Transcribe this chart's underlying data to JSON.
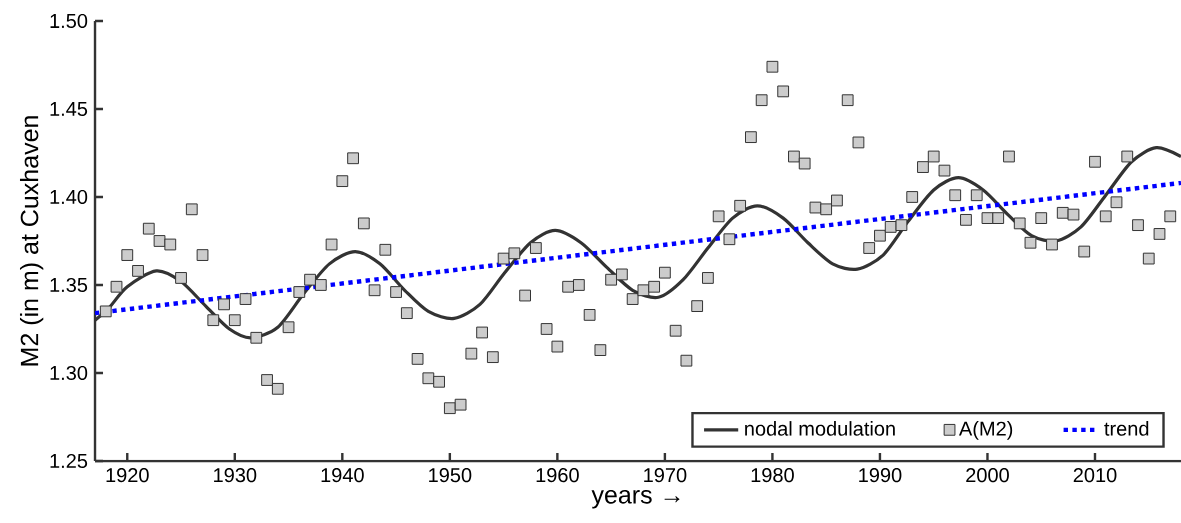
{
  "chart_data": {
    "type": "line",
    "xlabel": "years  →",
    "ylabel": "M2 (in m) at Cuxhaven",
    "xlim": [
      1917,
      2018
    ],
    "ylim": [
      1.25,
      1.5
    ],
    "xticks": [
      1920,
      1930,
      1940,
      1950,
      1960,
      1970,
      1980,
      1990,
      2000,
      2010
    ],
    "yticks": [
      {
        "value": 1.25,
        "label": "1.25"
      },
      {
        "value": 1.3,
        "label": "1.30"
      },
      {
        "value": 1.35,
        "label": "1.35"
      },
      {
        "value": 1.4,
        "label": "1.40"
      },
      {
        "value": 1.45,
        "label": "1.45"
      },
      {
        "value": 1.5,
        "label": "1.50"
      }
    ],
    "grid": false,
    "legend": "bottom right",
    "series": [
      {
        "name": "nodal modulation",
        "color": "#333333",
        "line_style": "solid",
        "marker": "none",
        "x": [
          1917,
          1918.3,
          1920,
          1922.7,
          1925,
          1927.3,
          1929.5,
          1931.5,
          1934,
          1936.4,
          1938.8,
          1941.2,
          1943.5,
          1945.8,
          1948,
          1950.4,
          1952.8,
          1955.1,
          1957.5,
          1959.8,
          1962.2,
          1964.6,
          1967,
          1969.4,
          1971.7,
          1974,
          1976.3,
          1978.6,
          1981,
          1983.3,
          1985.6,
          1987.9,
          1990.3,
          1992.6,
          1995,
          1997.3,
          1999.6,
          2001.9,
          2004.1,
          2006.4,
          2008.7,
          2011,
          2013.4,
          2015.7,
          2018
        ],
        "values": [
          1.33,
          1.337,
          1.349,
          1.358,
          1.352,
          1.338,
          1.325,
          1.32,
          1.326,
          1.345,
          1.362,
          1.369,
          1.362,
          1.347,
          1.335,
          1.331,
          1.339,
          1.357,
          1.374,
          1.381,
          1.374,
          1.36,
          1.347,
          1.343,
          1.353,
          1.371,
          1.388,
          1.395,
          1.388,
          1.374,
          1.362,
          1.359,
          1.367,
          1.386,
          1.404,
          1.411,
          1.404,
          1.39,
          1.378,
          1.375,
          1.383,
          1.401,
          1.42,
          1.428,
          1.423
        ]
      },
      {
        "name": "A(M2)",
        "type": "scatter",
        "color": "#cccccc",
        "marker": "square",
        "x": [
          1918,
          1919,
          1920,
          1921,
          1922,
          1923,
          1924,
          1925,
          1926,
          1927,
          1928,
          1929,
          1930,
          1931,
          1932,
          1933,
          1934,
          1935,
          1936,
          1937,
          1938,
          1939,
          1940,
          1941,
          1942,
          1943,
          1944,
          1945,
          1946,
          1947,
          1948,
          1949,
          1950,
          1951,
          1952,
          1953,
          1954,
          1955,
          1956,
          1957,
          1958,
          1959,
          1960,
          1961,
          1962,
          1963,
          1964,
          1965,
          1966,
          1967,
          1968,
          1969,
          1970,
          1971,
          1972,
          1973,
          1974,
          1975,
          1976,
          1977,
          1978,
          1979,
          1980,
          1981,
          1982,
          1983,
          1984,
          1985,
          1986,
          1987,
          1988,
          1989,
          1990,
          1991,
          1992,
          1993,
          1994,
          1995,
          1996,
          1997,
          1998,
          1999,
          2000,
          2001,
          2002,
          2003,
          2004,
          2005,
          2006,
          2007,
          2008,
          2009,
          2010,
          2011,
          2012,
          2013,
          2014,
          2015,
          2016,
          2017
        ],
        "values": [
          1.335,
          1.349,
          1.367,
          1.358,
          1.382,
          1.375,
          1.373,
          1.354,
          1.393,
          1.367,
          1.33,
          1.339,
          1.33,
          1.342,
          1.32,
          1.296,
          1.291,
          1.326,
          1.346,
          1.353,
          1.35,
          1.373,
          1.409,
          1.422,
          1.385,
          1.347,
          1.37,
          1.346,
          1.334,
          1.308,
          1.297,
          1.295,
          1.28,
          1.282,
          1.311,
          1.323,
          1.309,
          1.365,
          1.368,
          1.344,
          1.371,
          1.325,
          1.315,
          1.349,
          1.35,
          1.333,
          1.313,
          1.353,
          1.356,
          1.342,
          1.347,
          1.349,
          1.357,
          1.324,
          1.307,
          1.338,
          1.354,
          1.389,
          1.376,
          1.395,
          1.434,
          1.455,
          1.474,
          1.46,
          1.423,
          1.419,
          1.394,
          1.393,
          1.398,
          1.455,
          1.431,
          1.371,
          1.378,
          1.383,
          1.384,
          1.4,
          1.417,
          1.423,
          1.415,
          1.401,
          1.387,
          1.401,
          1.388,
          1.388,
          1.423,
          1.385,
          1.374,
          1.388,
          1.373,
          1.391,
          1.39,
          1.369,
          1.42,
          1.389,
          1.397,
          1.423,
          1.384,
          1.365,
          1.379,
          1.389
        ]
      },
      {
        "name": "trend",
        "color": "#0000ff",
        "line_style": "dotted",
        "marker": "none",
        "x": [
          1917,
          2018
        ],
        "values": [
          1.334,
          1.408
        ]
      }
    ]
  }
}
